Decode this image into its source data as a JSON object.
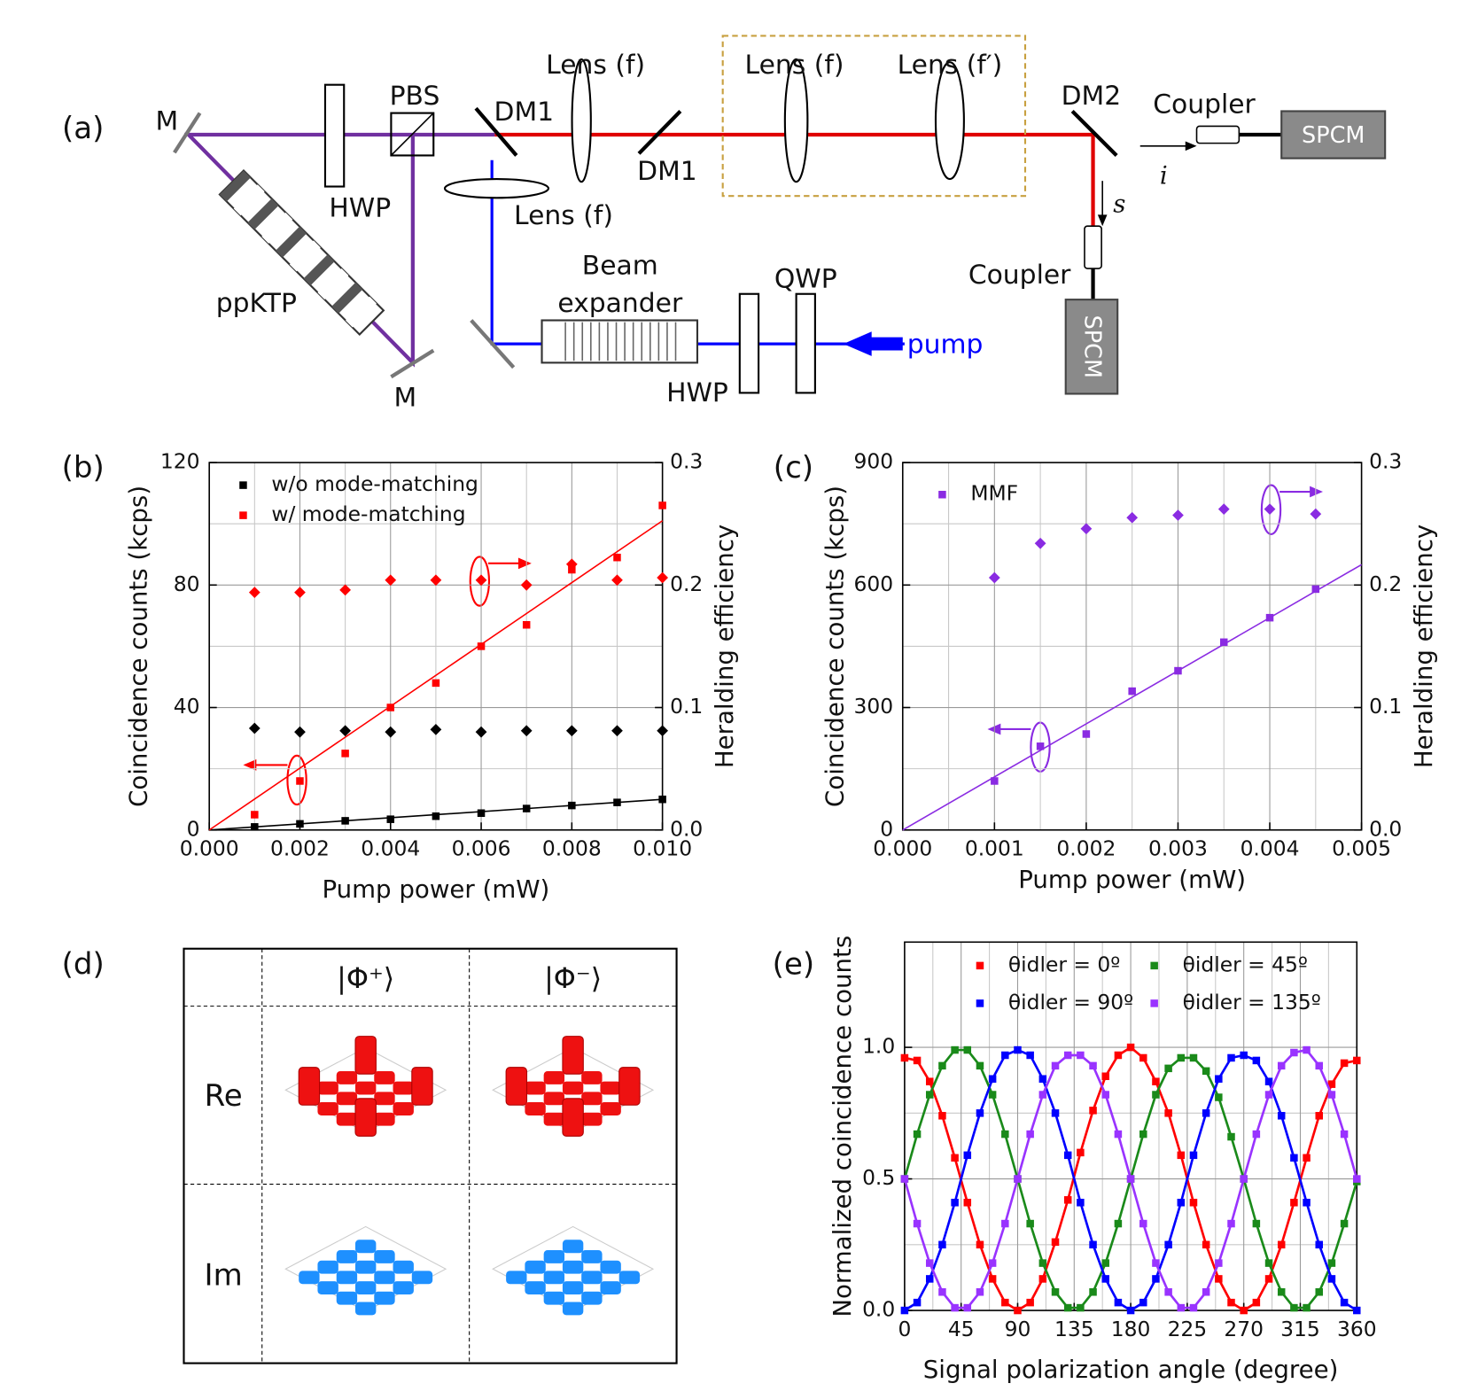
{
  "panel_labels": [
    "(a)",
    "(b)",
    "(c)",
    "(d)",
    "(e)"
  ],
  "setup": {
    "labels": [
      "M",
      "M",
      "ppKTP",
      "HWP",
      "PBS",
      "DM1",
      "Lens (f)",
      "DM1",
      "Lens (f)",
      "Lens (f′)",
      "DM2",
      "Coupler",
      "SPCM",
      "i",
      "s",
      "Coupler",
      "SPCM",
      "Lens (f)",
      "Beam",
      "expander",
      "QWP",
      "HWP",
      "pump"
    ]
  },
  "tomography": {
    "columns": [
      "|Φ⁺⟩",
      "|Φ⁻⟩"
    ],
    "rows": [
      "Re",
      "Im"
    ]
  },
  "chart_data": [
    {
      "type": "scatter",
      "xlabel": "Pump power (mW)",
      "ylabel": "Coincidence counts (kcps)",
      "y2label": "Heralding efficiency",
      "x": [
        0.001,
        0.002,
        0.003,
        0.004,
        0.005,
        0.006,
        0.007,
        0.008,
        0.009,
        0.01
      ],
      "xlim": [
        0,
        0.01
      ],
      "xticks": [
        {
          "value": 0,
          "label": "0.000"
        },
        0.002,
        0.004,
        0.006,
        0.008,
        {
          "value": 0.01,
          "label": "0.010"
        }
      ],
      "ylim": [
        0,
        120
      ],
      "yticks": [
        0,
        40,
        80,
        120
      ],
      "y2lim": [
        0,
        0.3
      ],
      "y2ticks": [
        {
          "value": 0,
          "label": "0.0"
        },
        0.1,
        0.2,
        0.3
      ],
      "grid": true,
      "legend": "upper left",
      "series": [
        {
          "name": "w/o mode-matching",
          "color": "#000000",
          "marker": "square",
          "values": [
            1,
            2,
            3,
            3.5,
            4.5,
            5.5,
            7,
            8,
            9,
            10
          ]
        },
        {
          "name": "w/ mode-matching",
          "color": "#ff0000",
          "marker": "square",
          "values": [
            5,
            16,
            25,
            40,
            48,
            60,
            67,
            85,
            89,
            106
          ]
        },
        {
          "color": "#000000",
          "marker": "diamond",
          "axis": "y2",
          "values": [
            0.083,
            0.08,
            0.081,
            0.08,
            0.082,
            0.08,
            0.081,
            0.081,
            0.081,
            0.081
          ]
        },
        {
          "color": "#ff0000",
          "marker": "diamond",
          "axis": "y2",
          "values": [
            0.194,
            0.194,
            0.196,
            0.204,
            0.204,
            0.204,
            0.2,
            0.217,
            0.204,
            0.206
          ]
        }
      ],
      "fit_lines": [
        {
          "color": "#000000",
          "x": [
            0,
            0.01
          ],
          "values": [
            0,
            10
          ]
        },
        {
          "color": "#ff0000",
          "x": [
            0,
            0.01
          ],
          "values": [
            0,
            101
          ]
        }
      ]
    },
    {
      "type": "scatter",
      "xlabel": "Pump power (mW)",
      "ylabel": "Coincidence counts (kcps)",
      "y2label": "Heralding efficiency",
      "x": [
        0.001,
        0.0015,
        0.002,
        0.0025,
        0.003,
        0.0035,
        0.004,
        0.0045
      ],
      "xlim": [
        0,
        0.005
      ],
      "xticks": [
        {
          "value": 0,
          "label": "0.000"
        },
        0.001,
        0.002,
        0.003,
        0.004,
        0.005
      ],
      "ylim": [
        0,
        900
      ],
      "yticks": [
        0,
        300,
        600,
        900
      ],
      "y2lim": [
        0,
        0.3
      ],
      "y2ticks": [
        {
          "value": 0,
          "label": "0.0"
        },
        0.1,
        0.2,
        0.3
      ],
      "grid": true,
      "legend": "upper left",
      "series": [
        {
          "name": "MMF",
          "color": "#8a2be2",
          "marker": "square",
          "values": [
            120,
            205,
            235,
            340,
            390,
            460,
            520,
            590
          ]
        },
        {
          "color": "#8a2be2",
          "marker": "diamond",
          "axis": "y2",
          "values": [
            0.206,
            0.234,
            0.246,
            0.255,
            0.257,
            0.262,
            0.262,
            0.258
          ]
        }
      ],
      "fit_lines": [
        {
          "color": "#8a2be2",
          "x": [
            0,
            0.005
          ],
          "values": [
            0,
            650
          ]
        }
      ]
    },
    {
      "type": "line",
      "xlabel": "Signal polarization angle (degree)",
      "ylabel": "Normalized coincidence counts",
      "x": [
        0,
        10,
        20,
        30,
        40,
        50,
        60,
        70,
        80,
        90,
        100,
        110,
        120,
        130,
        140,
        150,
        160,
        170,
        180,
        190,
        200,
        210,
        220,
        230,
        240,
        250,
        260,
        270,
        280,
        290,
        300,
        310,
        320,
        330,
        340,
        350,
        360
      ],
      "xlim": [
        0,
        360
      ],
      "xticks": [
        0,
        45,
        90,
        135,
        180,
        225,
        270,
        315,
        360
      ],
      "ylim": [
        0,
        1.4
      ],
      "yticks": [
        {
          "value": 0,
          "label": "0.0"
        },
        0.5,
        {
          "value": 1,
          "label": "1.0"
        }
      ],
      "grid": true,
      "legend": "upper center",
      "series": [
        {
          "name": "θidler = 0º",
          "color": "#ff0000",
          "marker": "square",
          "values": [
            0.96,
            0.95,
            0.87,
            0.74,
            0.58,
            0.41,
            0.25,
            0.12,
            0.03,
            0.0,
            0.03,
            0.12,
            0.26,
            0.42,
            0.6,
            0.76,
            0.89,
            0.97,
            1.0,
            0.96,
            0.87,
            0.75,
            0.59,
            0.41,
            0.25,
            0.12,
            0.03,
            0.0,
            0.03,
            0.12,
            0.25,
            0.41,
            0.58,
            0.74,
            0.86,
            0.94,
            0.95
          ]
        },
        {
          "name": "θidler = 45º",
          "color": "#1a8a1a",
          "marker": "square",
          "values": [
            0.5,
            0.67,
            0.82,
            0.93,
            0.99,
            0.99,
            0.93,
            0.82,
            0.67,
            0.5,
            0.33,
            0.18,
            0.07,
            0.01,
            0.01,
            0.07,
            0.18,
            0.33,
            0.5,
            0.67,
            0.82,
            0.92,
            0.96,
            0.96,
            0.91,
            0.81,
            0.66,
            0.5,
            0.33,
            0.18,
            0.07,
            0.01,
            0.01,
            0.07,
            0.18,
            0.33,
            0.49
          ]
        },
        {
          "name": "θidler = 90º",
          "color": "#0000ff",
          "marker": "square",
          "values": [
            0.0,
            0.03,
            0.12,
            0.25,
            0.41,
            0.59,
            0.75,
            0.88,
            0.97,
            0.99,
            0.97,
            0.88,
            0.75,
            0.59,
            0.41,
            0.25,
            0.12,
            0.03,
            0.0,
            0.03,
            0.12,
            0.25,
            0.41,
            0.59,
            0.75,
            0.88,
            0.96,
            0.97,
            0.95,
            0.87,
            0.74,
            0.58,
            0.41,
            0.25,
            0.12,
            0.03,
            0.0
          ]
        },
        {
          "name": "θidler = 135º",
          "color": "#9933ff",
          "marker": "square",
          "values": [
            0.5,
            0.33,
            0.18,
            0.07,
            0.01,
            0.01,
            0.07,
            0.18,
            0.33,
            0.5,
            0.67,
            0.82,
            0.93,
            0.97,
            0.97,
            0.93,
            0.82,
            0.67,
            0.5,
            0.33,
            0.18,
            0.07,
            0.01,
            0.01,
            0.07,
            0.18,
            0.33,
            0.5,
            0.67,
            0.82,
            0.93,
            0.98,
            0.99,
            0.93,
            0.82,
            0.67,
            0.5
          ]
        }
      ]
    }
  ]
}
